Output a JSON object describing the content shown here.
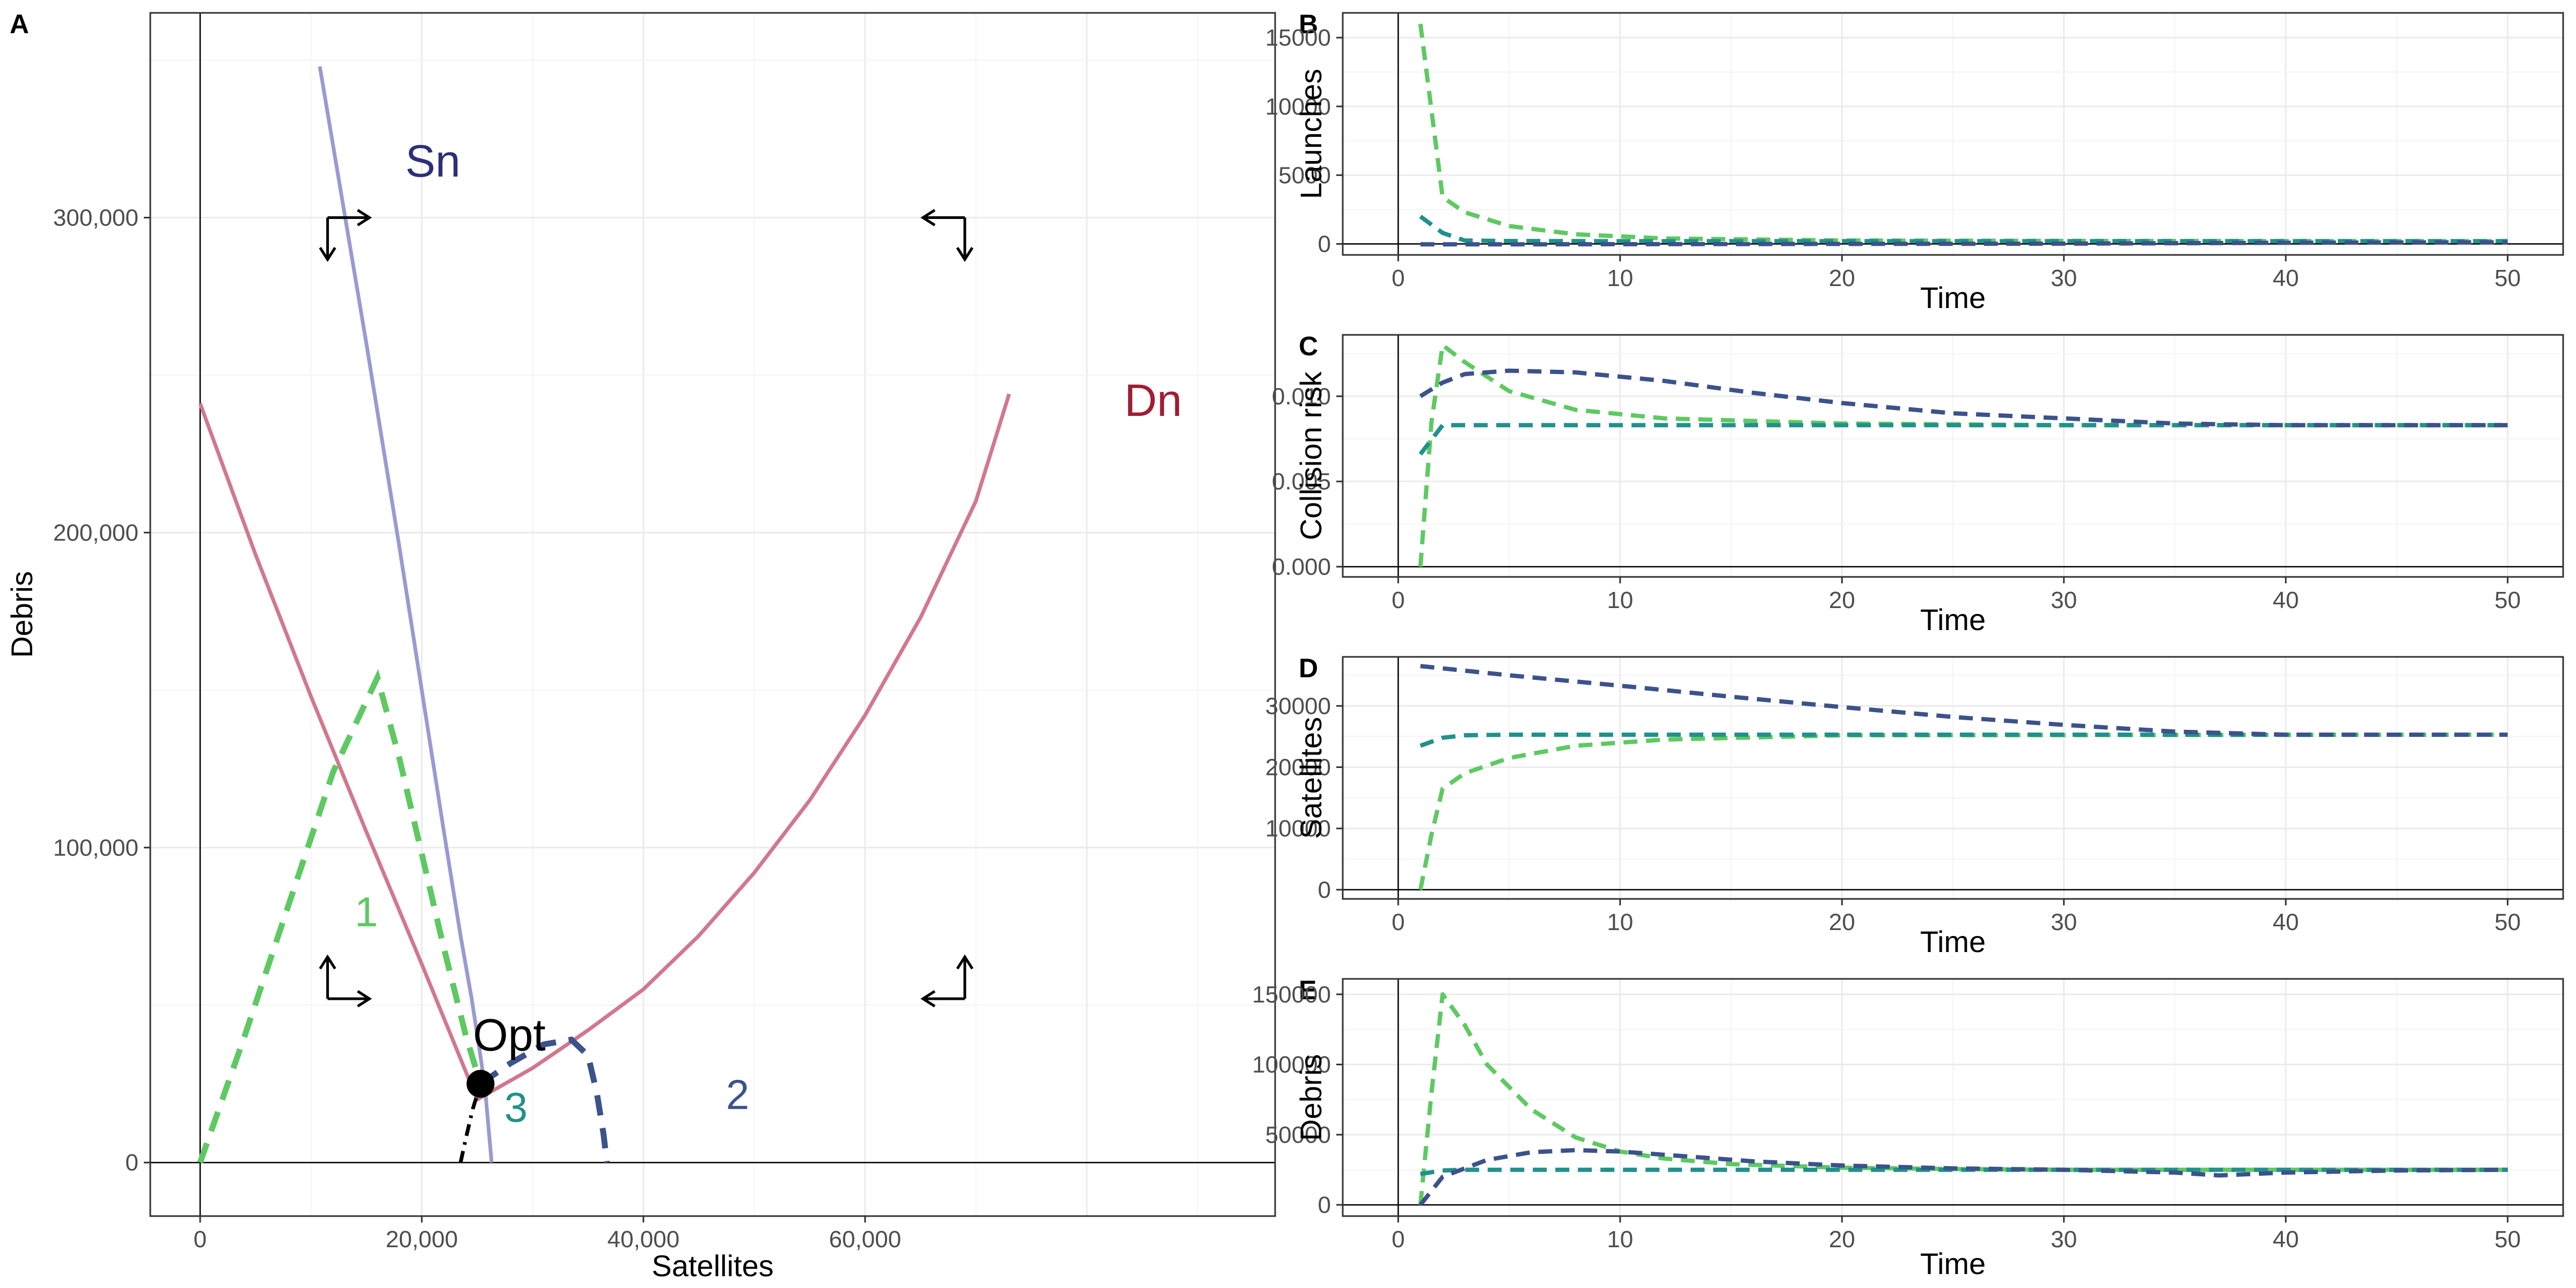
{
  "chart_data": [
    {
      "panel": "A",
      "type": "line",
      "xlabel": "Satellites",
      "ylabel": "Debris",
      "xlim": [
        -4500,
        97000
      ],
      "ylim": [
        -17000,
        365000
      ],
      "x_ticks": [
        0,
        20000,
        40000,
        60000
      ],
      "x_tick_labels": [
        "0",
        "20,000",
        "40,000",
        "60,000"
      ],
      "y_ticks": [
        0,
        100000,
        200000,
        300000
      ],
      "y_tick_labels": [
        "0",
        "100,000",
        "200,000",
        "300,000"
      ],
      "grid": true,
      "nullclines": [
        {
          "label": "Sn",
          "color": "#9a9ad0",
          "label_color": "#2d2f7a",
          "label_at": [
            21000,
            313000
          ],
          "x": [
            10800,
            15000,
            18000,
            20000,
            22000,
            23500,
            24500,
            25200,
            25700,
            26000,
            26200,
            26300
          ],
          "y": [
            348000,
            260000,
            195000,
            150000,
            105000,
            72000,
            52000,
            36000,
            24000,
            12000,
            4000,
            0
          ]
        },
        {
          "label": "Dn",
          "color": "#d1788e",
          "label_color": "#a11d33",
          "label_at": [
            86000,
            237000
          ],
          "x": [
            0,
            5000,
            10000,
            15000,
            20000,
            25000,
            30000,
            35000,
            40000,
            45000,
            50000,
            55000,
            60000,
            65000,
            70000,
            73000
          ],
          "y": [
            241000,
            193000,
            148000,
            105000,
            63000,
            20000,
            30000,
            42000,
            55000,
            72000,
            92000,
            115000,
            142000,
            173000,
            210000,
            244000
          ]
        }
      ],
      "trajectories": [
        {
          "label": "1",
          "color": "#5ec962",
          "label_color": "#5ec962",
          "label_at": [
            15000,
            75000
          ],
          "x": [
            0,
            4000,
            8000,
            12000,
            16000,
            18000,
            20000,
            22000,
            24000,
            25300
          ],
          "y": [
            0,
            40000,
            82000,
            124000,
            154000,
            128000,
            98000,
            68000,
            40000,
            25000
          ]
        },
        {
          "label": "2",
          "color": "#3b528b",
          "label_color": "#3b528b",
          "label_at": [
            48500,
            17000
          ],
          "x": [
            25300,
            28000,
            31000,
            33500,
            35000,
            35800,
            36400,
            36700
          ],
          "y": [
            25000,
            31500,
            37500,
            39000,
            34000,
            22000,
            9000,
            0
          ]
        },
        {
          "label": "3",
          "color": "#21918c",
          "label_color": "#21918c",
          "label_at": [
            28500,
            13000
          ],
          "x": [
            23500,
            24000,
            24600,
            25300
          ],
          "y": [
            0,
            8000,
            17000,
            25000
          ]
        }
      ],
      "optimum": {
        "label": "Opt",
        "x": 25300,
        "y": 25000
      },
      "arrow_quadrants": [
        {
          "x": 11500,
          "y": 300000,
          "horizontal": "right",
          "vertical": "down"
        },
        {
          "x": 69000,
          "y": 300000,
          "horizontal": "left",
          "vertical": "down"
        },
        {
          "x": 11500,
          "y": 52000,
          "horizontal": "right",
          "vertical": "up"
        },
        {
          "x": 69000,
          "y": 52000,
          "horizontal": "left",
          "vertical": "up"
        }
      ]
    },
    {
      "panel": "B",
      "type": "line",
      "xlabel": "Time",
      "ylabel": "Launches",
      "xlim": [
        -2.5,
        52.5
      ],
      "ylim": [
        -800,
        16800
      ],
      "x_ticks": [
        0,
        10,
        20,
        30,
        40,
        50
      ],
      "x_tick_labels": [
        "0",
        "10",
        "20",
        "30",
        "40",
        "50"
      ],
      "y_ticks": [
        0,
        5000,
        10000,
        15000
      ],
      "y_tick_labels": [
        "0",
        "5000",
        "10000",
        "15000"
      ],
      "grid": true,
      "series": [
        {
          "color": "#5ec962",
          "x": [
            1,
            2,
            3,
            5,
            8,
            12,
            20,
            30,
            50
          ],
          "y": [
            16000,
            3400,
            2300,
            1300,
            700,
            400,
            250,
            220,
            200
          ]
        },
        {
          "color": "#21918c",
          "x": [
            1,
            2,
            3,
            5,
            10,
            20,
            50
          ],
          "y": [
            2000,
            800,
            250,
            210,
            200,
            200,
            200
          ]
        },
        {
          "color": "#3b528b",
          "x": [
            1,
            2,
            5,
            10,
            20,
            30,
            40,
            50
          ],
          "y": [
            -30,
            -30,
            -30,
            -20,
            0,
            20,
            80,
            120
          ]
        }
      ]
    },
    {
      "panel": "C",
      "type": "line",
      "xlabel": "Time",
      "ylabel": "Collision risk",
      "xlim": [
        -2.5,
        52.5
      ],
      "ylim": [
        -0.0006,
        0.0136
      ],
      "x_ticks": [
        0,
        10,
        20,
        30,
        40,
        50
      ],
      "x_tick_labels": [
        "0",
        "10",
        "20",
        "30",
        "40",
        "50"
      ],
      "y_ticks": [
        0,
        0.005,
        0.01
      ],
      "y_tick_labels": [
        "0.000",
        "0.005",
        "0.010"
      ],
      "grid": true,
      "series": [
        {
          "color": "#5ec962",
          "x": [
            1,
            1.5,
            2,
            3,
            5,
            8,
            12,
            20,
            30,
            50
          ],
          "y": [
            0,
            0.0085,
            0.013,
            0.012,
            0.0103,
            0.0092,
            0.0087,
            0.0084,
            0.0083,
            0.0083
          ]
        },
        {
          "color": "#21918c",
          "x": [
            1,
            2,
            5,
            10,
            20,
            50
          ],
          "y": [
            0.0066,
            0.0083,
            0.0083,
            0.0083,
            0.0083,
            0.0083
          ]
        },
        {
          "color": "#3b528b",
          "x": [
            1,
            2,
            3,
            5,
            8,
            12,
            16,
            20,
            25,
            30,
            35,
            40,
            50
          ],
          "y": [
            0.01,
            0.0108,
            0.0113,
            0.0115,
            0.0114,
            0.0109,
            0.0102,
            0.0096,
            0.009,
            0.0087,
            0.0084,
            0.0083,
            0.0083
          ]
        }
      ]
    },
    {
      "panel": "D",
      "type": "line",
      "xlabel": "Time",
      "ylabel": "Satellites",
      "xlim": [
        -2.5,
        52.5
      ],
      "ylim": [
        -1500,
        38000
      ],
      "x_ticks": [
        0,
        10,
        20,
        30,
        40,
        50
      ],
      "x_tick_labels": [
        "0",
        "10",
        "20",
        "30",
        "40",
        "50"
      ],
      "y_ticks": [
        0,
        10000,
        20000,
        30000
      ],
      "y_tick_labels": [
        "0",
        "10000",
        "20000",
        "30000"
      ],
      "grid": true,
      "series": [
        {
          "color": "#5ec962",
          "x": [
            1,
            1.5,
            2,
            3,
            5,
            8,
            12,
            20,
            50
          ],
          "y": [
            0,
            9000,
            16500,
            19000,
            21500,
            23500,
            24500,
            25200,
            25300
          ]
        },
        {
          "color": "#21918c",
          "x": [
            1,
            2,
            3,
            5,
            10,
            20,
            50
          ],
          "y": [
            23500,
            24800,
            25200,
            25300,
            25300,
            25300,
            25300
          ]
        },
        {
          "color": "#3b528b",
          "x": [
            1,
            5,
            10,
            15,
            20,
            25,
            30,
            35,
            40,
            50
          ],
          "y": [
            36500,
            35000,
            33300,
            31500,
            29800,
            28200,
            26900,
            25800,
            25300,
            25300
          ]
        }
      ]
    },
    {
      "panel": "E",
      "type": "line",
      "xlabel": "Time",
      "ylabel": "Debris",
      "xlim": [
        -2.5,
        52.5
      ],
      "ylim": [
        -8000,
        161000
      ],
      "x_ticks": [
        0,
        10,
        20,
        30,
        40,
        50
      ],
      "x_tick_labels": [
        "0",
        "10",
        "20",
        "30",
        "40",
        "50"
      ],
      "y_ticks": [
        0,
        50000,
        100000,
        150000
      ],
      "y_tick_labels": [
        "0",
        "50000",
        "100000",
        "150000"
      ],
      "grid": true,
      "series": [
        {
          "color": "#5ec962",
          "x": [
            1,
            1.5,
            2,
            3,
            4,
            6,
            8,
            10,
            12,
            15,
            20,
            25,
            30,
            50
          ],
          "y": [
            0,
            80000,
            150000,
            128000,
            100000,
            68000,
            48000,
            38000,
            33000,
            29000,
            26500,
            25500,
            25000,
            25000
          ]
        },
        {
          "color": "#21918c",
          "x": [
            1,
            2,
            3,
            5,
            10,
            20,
            50
          ],
          "y": [
            22000,
            24500,
            25000,
            25000,
            25000,
            25000,
            25000
          ]
        },
        {
          "color": "#3b528b",
          "x": [
            1,
            2,
            4,
            6,
            8,
            10,
            13,
            16,
            20,
            25,
            30,
            35,
            37,
            40,
            45,
            50
          ],
          "y": [
            0,
            20000,
            32000,
            37500,
            39000,
            38000,
            34500,
            31000,
            28000,
            26000,
            25000,
            23000,
            21000,
            23000,
            24500,
            25000
          ]
        }
      ]
    }
  ]
}
